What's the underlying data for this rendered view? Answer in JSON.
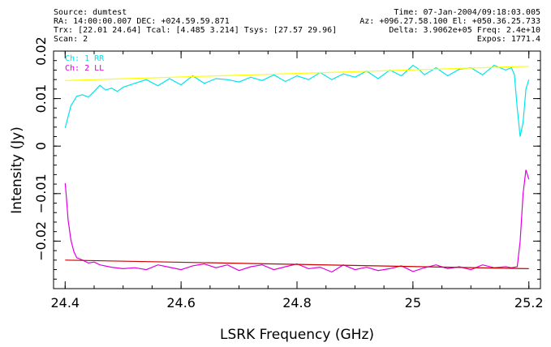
{
  "header": {
    "left": [
      "Source: dumtest",
      "RA: 14:00:00.007 DEC: +024.59.59.871",
      "Trx: [22.01 24.64]  Tcal: [4.485 3.214]  Tsys: [27.57 29.96]",
      "Scan: 2"
    ],
    "right": [
      "Time: 07-Jan-2004/09:18:03.005",
      "Az: +096.27.58.100 El: +050.36.25.733",
      "Delta: 3.9062e+05  Freq: 2.4e+10",
      "Expos: 1771.4"
    ]
  },
  "chart_data": {
    "type": "line",
    "xlabel": "LSRK Frequency (GHz)",
    "ylabel": "Intensity (Jy)",
    "xlim": [
      24.38,
      25.22
    ],
    "ylim": [
      -0.03,
      0.02
    ],
    "xticks": [
      24.4,
      24.6,
      24.8,
      25,
      25.2
    ],
    "xtick_labels": [
      "24.4",
      "24.6",
      "24.8",
      "25",
      "25.2"
    ],
    "yticks": [
      -0.02,
      -0.01,
      0,
      0.01,
      0.02
    ],
    "ytick_labels": [
      "−0.02",
      "−0.01",
      "0",
      "0.01",
      "0.02"
    ],
    "legend_position": "top-left",
    "series": [
      {
        "name": "Ch: 1 RR",
        "color": "#00e5ee",
        "x": [
          24.4,
          24.41,
          24.42,
          24.43,
          24.44,
          24.45,
          24.46,
          24.47,
          24.48,
          24.49,
          24.5,
          24.52,
          24.54,
          24.56,
          24.58,
          24.6,
          24.62,
          24.64,
          24.66,
          24.68,
          24.7,
          24.72,
          24.74,
          24.76,
          24.78,
          24.8,
          24.82,
          24.84,
          24.86,
          24.88,
          24.9,
          24.92,
          24.94,
          24.96,
          24.98,
          25.0,
          25.01,
          25.02,
          25.04,
          25.06,
          25.08,
          25.1,
          25.12,
          25.14,
          25.16,
          25.17,
          25.175,
          25.18,
          25.185,
          25.19,
          25.195,
          25.2
        ],
        "y": [
          0.0038,
          0.0085,
          0.0105,
          0.0108,
          0.0103,
          0.0115,
          0.0128,
          0.0118,
          0.0122,
          0.0115,
          0.0124,
          0.0132,
          0.014,
          0.0127,
          0.0142,
          0.0129,
          0.0148,
          0.0132,
          0.0142,
          0.014,
          0.0135,
          0.0145,
          0.0138,
          0.015,
          0.0136,
          0.0148,
          0.014,
          0.0155,
          0.014,
          0.0152,
          0.0145,
          0.0158,
          0.0142,
          0.016,
          0.0148,
          0.017,
          0.0162,
          0.015,
          0.0165,
          0.0148,
          0.0162,
          0.0165,
          0.015,
          0.017,
          0.016,
          0.0165,
          0.015,
          0.008,
          0.002,
          0.005,
          0.012,
          0.014
        ]
      },
      {
        "name": "Ch: 2 LL",
        "color": "#e000e0",
        "x": [
          24.4,
          24.402,
          24.405,
          24.41,
          24.415,
          24.42,
          24.43,
          24.44,
          24.45,
          24.46,
          24.48,
          24.5,
          24.52,
          24.54,
          24.56,
          24.58,
          24.6,
          24.62,
          24.64,
          24.66,
          24.68,
          24.7,
          24.72,
          24.74,
          24.76,
          24.78,
          24.8,
          24.82,
          24.84,
          24.86,
          24.88,
          24.9,
          24.92,
          24.94,
          24.96,
          24.98,
          25.0,
          25.02,
          25.04,
          25.06,
          25.08,
          25.1,
          25.12,
          25.14,
          25.16,
          25.17,
          25.175,
          25.18,
          25.185,
          25.19,
          25.195,
          25.2
        ],
        "y": [
          -0.0078,
          -0.0105,
          -0.0155,
          -0.0198,
          -0.0222,
          -0.0235,
          -0.024,
          -0.0246,
          -0.0244,
          -0.025,
          -0.0255,
          -0.0258,
          -0.0256,
          -0.026,
          -0.025,
          -0.0255,
          -0.026,
          -0.0252,
          -0.0248,
          -0.0256,
          -0.025,
          -0.0262,
          -0.0254,
          -0.025,
          -0.026,
          -0.0254,
          -0.0248,
          -0.0258,
          -0.0255,
          -0.0265,
          -0.025,
          -0.026,
          -0.0255,
          -0.0262,
          -0.0258,
          -0.0252,
          -0.0264,
          -0.0256,
          -0.025,
          -0.0258,
          -0.0254,
          -0.026,
          -0.025,
          -0.0256,
          -0.0254,
          -0.0256,
          -0.0255,
          -0.0254,
          -0.02,
          -0.01,
          -0.005,
          -0.007
        ]
      },
      {
        "color": "#ffff00",
        "x": [
          24.4,
          25.2
        ],
        "y": [
          0.0138,
          0.0168
        ]
      },
      {
        "color": "#cc0000",
        "x": [
          24.4,
          25.2
        ],
        "y": [
          -0.024,
          -0.0258
        ]
      }
    ]
  }
}
